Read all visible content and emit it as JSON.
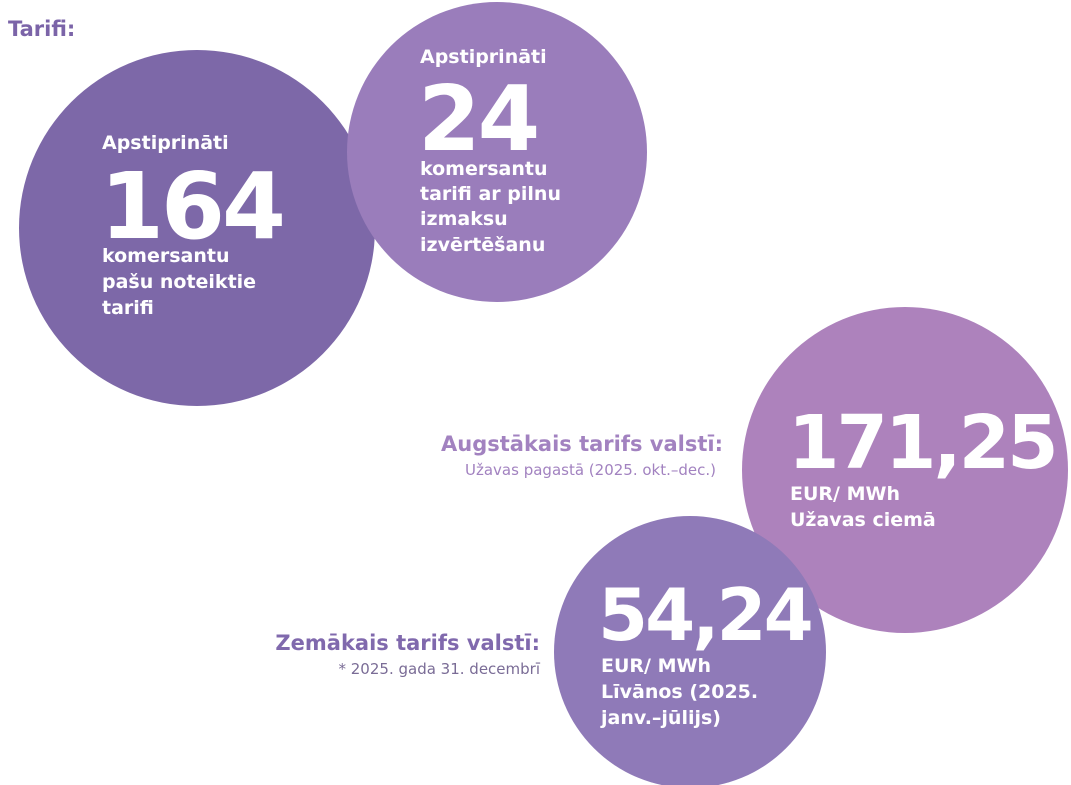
{
  "title": "Tarifi:",
  "circles": [
    {
      "heading": "Apstiprināti",
      "number": "164",
      "lines": [
        "komersantu",
        "pašu noteiktie",
        "tarifi"
      ]
    },
    {
      "heading": "Apstiprināti",
      "number": "24",
      "lines": [
        "komersantu",
        "tarifi ar pilnu",
        "izmaksu",
        "izvērtēšanu"
      ]
    },
    {
      "number": "171,25",
      "lines": [
        "EUR/ MWh",
        "Užavas ciemā"
      ]
    },
    {
      "number": "54,24",
      "lines": [
        "EUR/ MWh",
        "Līvānos (2025.",
        "janv.–jūlijs)"
      ]
    }
  ],
  "highest": {
    "label": "Augstākais tarifs valstī:",
    "note": "Užavas pagastā (2025. okt.–dec.)"
  },
  "lowest": {
    "label": "Zemākais tarifs valstī:",
    "note": "* 2025. gada 31. decembrī"
  }
}
